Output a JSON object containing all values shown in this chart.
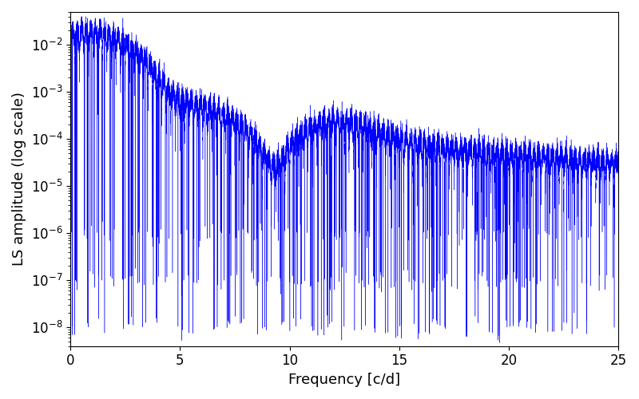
{
  "xlabel": "Frequency [c/d]",
  "ylabel": "LS amplitude (log scale)",
  "color": "#0000FF",
  "xlim": [
    0,
    25
  ],
  "ylim": [
    4e-09,
    0.05
  ],
  "freq_min": 0.005,
  "freq_max": 25.0,
  "n_points": 10000,
  "seed": 42,
  "figsize": [
    8.0,
    5.0
  ],
  "dpi": 100,
  "background_color": "#ffffff",
  "tick_label_fontsize": 12,
  "axis_label_fontsize": 13,
  "xticks": [
    0,
    5,
    10,
    15,
    20,
    25
  ],
  "linewidth": 0.3
}
